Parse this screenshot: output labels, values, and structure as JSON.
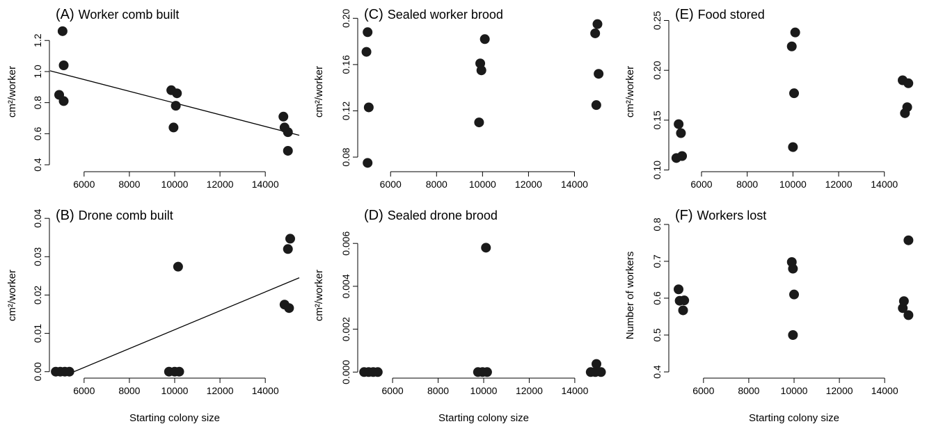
{
  "figure": {
    "x_axis_label": "Starting colony size"
  },
  "chart_data": [
    {
      "id": "A",
      "type": "scatter",
      "title_letter": "(A)",
      "title": "Worker comb built",
      "xlabel": "",
      "ylabel": "cm²/worker",
      "xlim": [
        4500,
        15500
      ],
      "ylim": [
        0.36,
        1.38
      ],
      "xticks": [
        6000,
        8000,
        10000,
        12000,
        14000
      ],
      "xtick_labels": [
        "6000",
        "8000",
        "10000",
        "12000",
        "14000"
      ],
      "yticks": [
        0.4,
        0.6,
        0.8,
        1.0,
        1.2
      ],
      "ytick_labels": [
        "0.4",
        "0.6",
        "0.8",
        "1.0",
        "1.2"
      ],
      "points": [
        {
          "x": 5050,
          "y": 1.26
        },
        {
          "x": 5100,
          "y": 1.04
        },
        {
          "x": 4900,
          "y": 0.85
        },
        {
          "x": 5100,
          "y": 0.81
        },
        {
          "x": 9850,
          "y": 0.88
        },
        {
          "x": 10100,
          "y": 0.86
        },
        {
          "x": 10050,
          "y": 0.78
        },
        {
          "x": 9950,
          "y": 0.64
        },
        {
          "x": 14800,
          "y": 0.71
        },
        {
          "x": 14850,
          "y": 0.64
        },
        {
          "x": 15000,
          "y": 0.61
        },
        {
          "x": 15000,
          "y": 0.49
        }
      ],
      "fit_line": {
        "x": [
          4500,
          15500
        ],
        "y": [
          1.005,
          0.59
        ]
      }
    },
    {
      "id": "C",
      "type": "scatter",
      "title_letter": "(C)",
      "title": "Sealed worker brood",
      "xlabel": "",
      "ylabel": "cm²/worker",
      "xlim": [
        4600,
        15500
      ],
      "ylim": [
        0.068,
        0.205
      ],
      "xticks": [
        6000,
        8000,
        10000,
        12000,
        14000
      ],
      "xtick_labels": [
        "6000",
        "8000",
        "10000",
        "12000",
        "14000"
      ],
      "yticks": [
        0.08,
        0.12,
        0.16,
        0.2
      ],
      "ytick_labels": [
        "0.08",
        "0.12",
        "0.16",
        "0.20"
      ],
      "points": [
        {
          "x": 5000,
          "y": 0.188
        },
        {
          "x": 4950,
          "y": 0.171
        },
        {
          "x": 5050,
          "y": 0.123
        },
        {
          "x": 5000,
          "y": 0.075
        },
        {
          "x": 10100,
          "y": 0.182
        },
        {
          "x": 9900,
          "y": 0.161
        },
        {
          "x": 9950,
          "y": 0.155
        },
        {
          "x": 9850,
          "y": 0.11
        },
        {
          "x": 15000,
          "y": 0.195
        },
        {
          "x": 14900,
          "y": 0.187
        },
        {
          "x": 15050,
          "y": 0.152
        },
        {
          "x": 14950,
          "y": 0.125
        }
      ]
    },
    {
      "id": "E",
      "type": "scatter",
      "title_letter": "(E)",
      "title": "Food stored",
      "xlabel": "",
      "ylabel": "cm²/worker",
      "xlim": [
        4600,
        15500
      ],
      "ylim": [
        0.099,
        0.258
      ],
      "xticks": [
        6000,
        8000,
        10000,
        12000,
        14000
      ],
      "xtick_labels": [
        "6000",
        "8000",
        "10000",
        "12000",
        "14000"
      ],
      "yticks": [
        0.1,
        0.15,
        0.2,
        0.25
      ],
      "ytick_labels": [
        "0.10",
        "0.15",
        "0.20",
        "0.25"
      ],
      "points": [
        {
          "x": 5000,
          "y": 0.146
        },
        {
          "x": 5100,
          "y": 0.137
        },
        {
          "x": 5150,
          "y": 0.114
        },
        {
          "x": 4900,
          "y": 0.112
        },
        {
          "x": 10100,
          "y": 0.238
        },
        {
          "x": 9950,
          "y": 0.224
        },
        {
          "x": 10050,
          "y": 0.177
        },
        {
          "x": 10000,
          "y": 0.123
        },
        {
          "x": 14800,
          "y": 0.19
        },
        {
          "x": 15050,
          "y": 0.187
        },
        {
          "x": 15000,
          "y": 0.163
        },
        {
          "x": 14900,
          "y": 0.157
        }
      ]
    },
    {
      "id": "B",
      "type": "scatter",
      "title_letter": "(B)",
      "title": "Drone comb built",
      "xlabel": "Starting colony size",
      "ylabel": "cm²/worker",
      "xlim": [
        4500,
        15500
      ],
      "ylim": [
        -0.0015,
        0.0413
      ],
      "xticks": [
        6000,
        8000,
        10000,
        12000,
        14000
      ],
      "xtick_labels": [
        "6000",
        "8000",
        "10000",
        "12000",
        "14000"
      ],
      "yticks": [
        0.0,
        0.01,
        0.02,
        0.03,
        0.04
      ],
      "ytick_labels": [
        "0.00",
        "0.01",
        "0.02",
        "0.03",
        "0.04"
      ],
      "points": [
        {
          "x": 4750,
          "y": 0.0
        },
        {
          "x": 4950,
          "y": 0.0
        },
        {
          "x": 5150,
          "y": 0.0
        },
        {
          "x": 5350,
          "y": 0.0
        },
        {
          "x": 10150,
          "y": 0.0274
        },
        {
          "x": 9750,
          "y": 0.0
        },
        {
          "x": 10000,
          "y": 0.0
        },
        {
          "x": 10200,
          "y": 0.0
        },
        {
          "x": 15100,
          "y": 0.0347
        },
        {
          "x": 15000,
          "y": 0.032
        },
        {
          "x": 14850,
          "y": 0.0175
        },
        {
          "x": 15050,
          "y": 0.0166
        }
      ],
      "fit_line": {
        "x": [
          5350,
          15500
        ],
        "y": [
          -0.0005,
          0.0245
        ]
      }
    },
    {
      "id": "D",
      "type": "scatter",
      "title_letter": "(D)",
      "title": "Sealed drone brood",
      "xlabel": "Starting colony size",
      "ylabel": "cm²/worker",
      "xlim": [
        4500,
        15500
      ],
      "ylim": [
        -0.00025,
        0.0074
      ],
      "xticks": [
        6000,
        8000,
        10000,
        12000,
        14000
      ],
      "xtick_labels": [
        "6000",
        "8000",
        "10000",
        "12000",
        "14000"
      ],
      "yticks": [
        0.0,
        0.002,
        0.004,
        0.006
      ],
      "ytick_labels": [
        "0.000",
        "0.002",
        "0.004",
        "0.006"
      ],
      "points": [
        {
          "x": 4750,
          "y": 0.0
        },
        {
          "x": 4950,
          "y": 0.0
        },
        {
          "x": 5150,
          "y": 0.0
        },
        {
          "x": 5350,
          "y": 0.0
        },
        {
          "x": 10100,
          "y": 0.0058
        },
        {
          "x": 9750,
          "y": 0.0
        },
        {
          "x": 9950,
          "y": 0.0
        },
        {
          "x": 10150,
          "y": 0.0
        },
        {
          "x": 14950,
          "y": 0.00038
        },
        {
          "x": 14700,
          "y": 0.0
        },
        {
          "x": 14900,
          "y": 0.0
        },
        {
          "x": 15150,
          "y": 0.0
        }
      ]
    },
    {
      "id": "F",
      "type": "scatter",
      "title_letter": "(F)",
      "title": "Workers lost",
      "xlabel": "Starting colony size",
      "ylabel": "Number of workers",
      "xlim": [
        4500,
        15500
      ],
      "ylim": [
        0.385,
        0.83
      ],
      "xticks": [
        6000,
        8000,
        10000,
        12000,
        14000
      ],
      "xtick_labels": [
        "6000",
        "8000",
        "10000",
        "12000",
        "14000"
      ],
      "yticks": [
        0.4,
        0.5,
        0.6,
        0.7,
        0.8
      ],
      "ytick_labels": [
        "0.4",
        "0.5",
        "0.6",
        "0.7",
        "0.8"
      ],
      "points": [
        {
          "x": 4900,
          "y": 0.624
        },
        {
          "x": 4950,
          "y": 0.593
        },
        {
          "x": 5150,
          "y": 0.594
        },
        {
          "x": 5100,
          "y": 0.567
        },
        {
          "x": 9900,
          "y": 0.698
        },
        {
          "x": 9950,
          "y": 0.68
        },
        {
          "x": 10000,
          "y": 0.61
        },
        {
          "x": 9950,
          "y": 0.5
        },
        {
          "x": 15050,
          "y": 0.757
        },
        {
          "x": 14850,
          "y": 0.592
        },
        {
          "x": 14800,
          "y": 0.573
        },
        {
          "x": 15050,
          "y": 0.554
        }
      ]
    }
  ]
}
